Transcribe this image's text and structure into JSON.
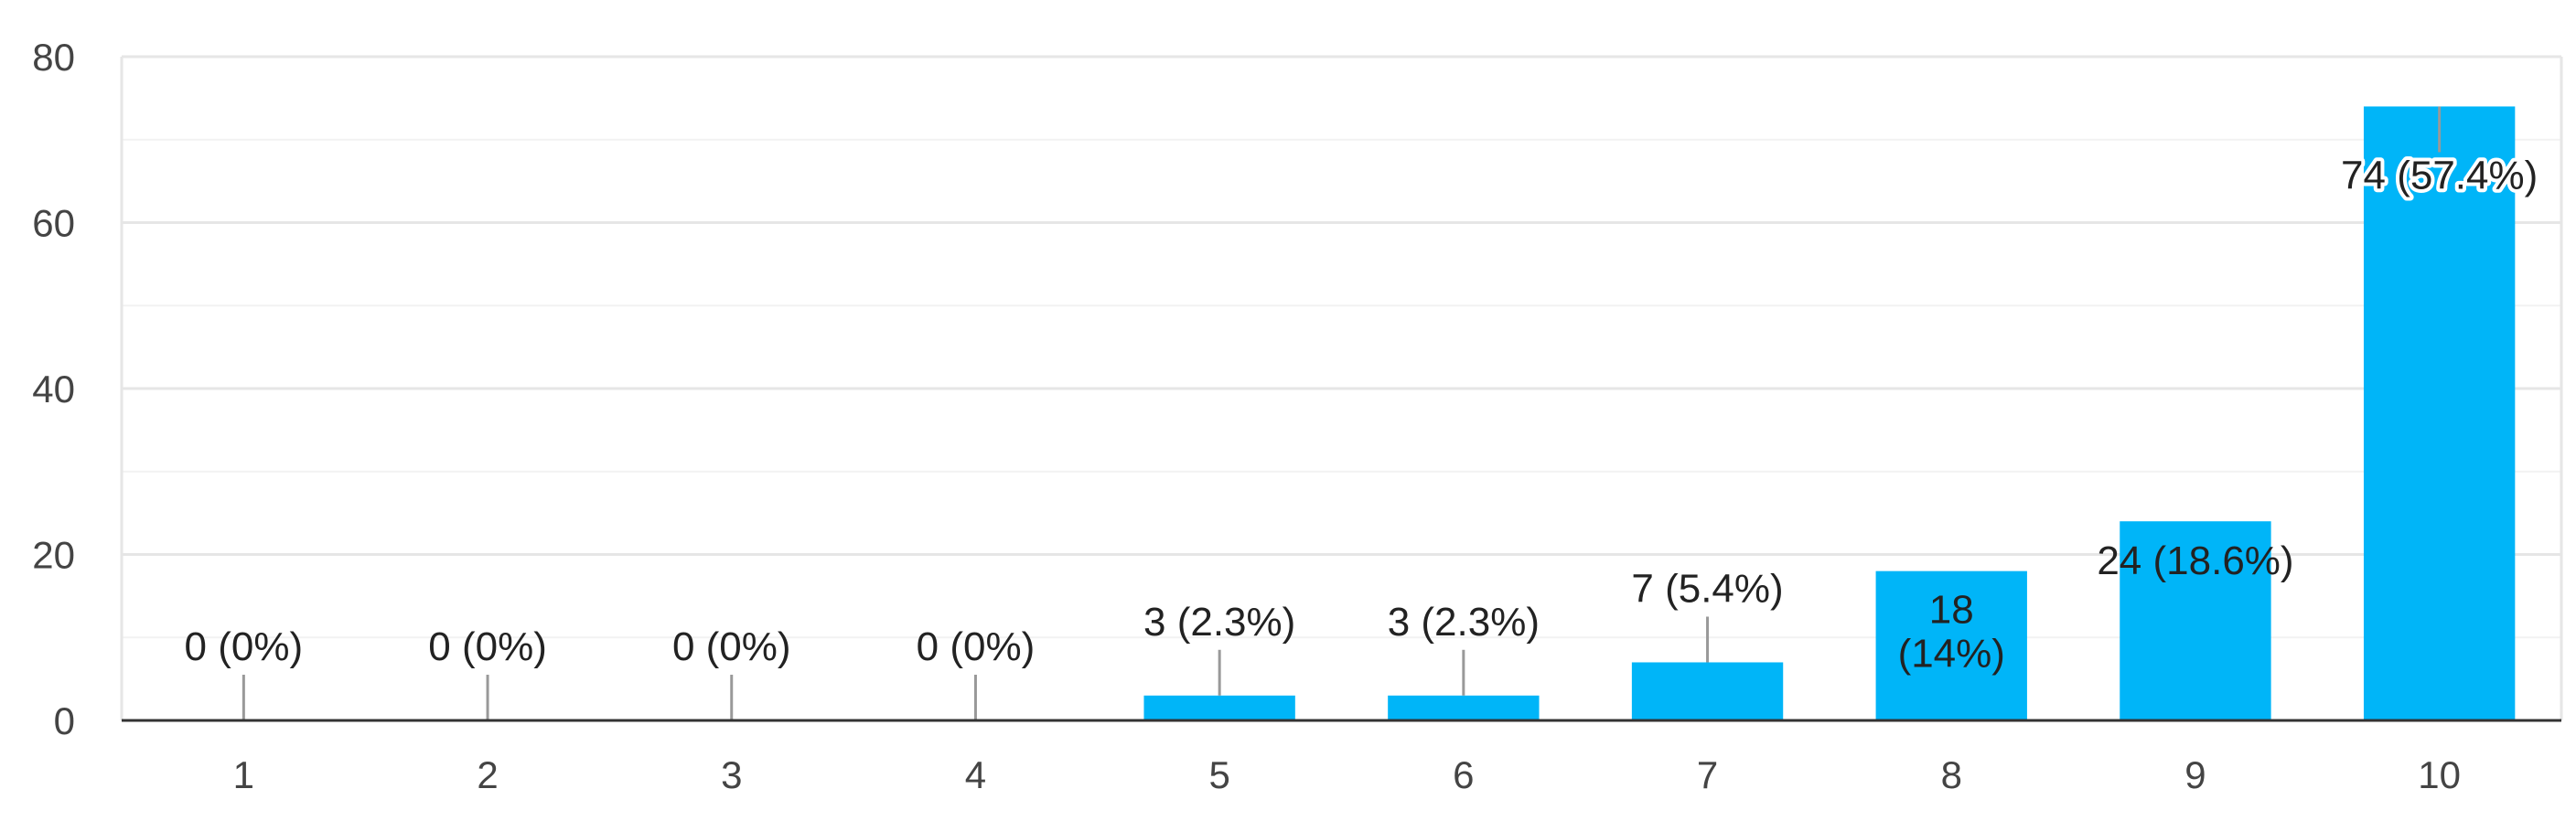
{
  "chart_data": {
    "type": "bar",
    "categories": [
      "1",
      "2",
      "3",
      "4",
      "5",
      "6",
      "7",
      "8",
      "9",
      "10"
    ],
    "values": [
      0,
      0,
      0,
      0,
      3,
      3,
      7,
      18,
      24,
      74
    ],
    "data_labels": [
      [
        "0 (0%)"
      ],
      [
        "0 (0%)"
      ],
      [
        "0 (0%)"
      ],
      [
        "0 (0%)"
      ],
      [
        "3 (2.3%)"
      ],
      [
        "3 (2.3%)"
      ],
      [
        "7 (5.4%)"
      ],
      [
        "18",
        "(14%)"
      ],
      [
        "24 (18.6%)"
      ],
      [
        "74 (57.4%)"
      ]
    ],
    "yticks": [
      "0",
      "20",
      "40",
      "60",
      "80"
    ],
    "ylim": [
      0,
      80
    ],
    "grid": true,
    "bar_color": "#00b5f8",
    "axis_color": "#333333",
    "grid_color": "#e6e6e6",
    "minor_grid_color": "#f2f2f2",
    "leader_color": "#999999"
  }
}
